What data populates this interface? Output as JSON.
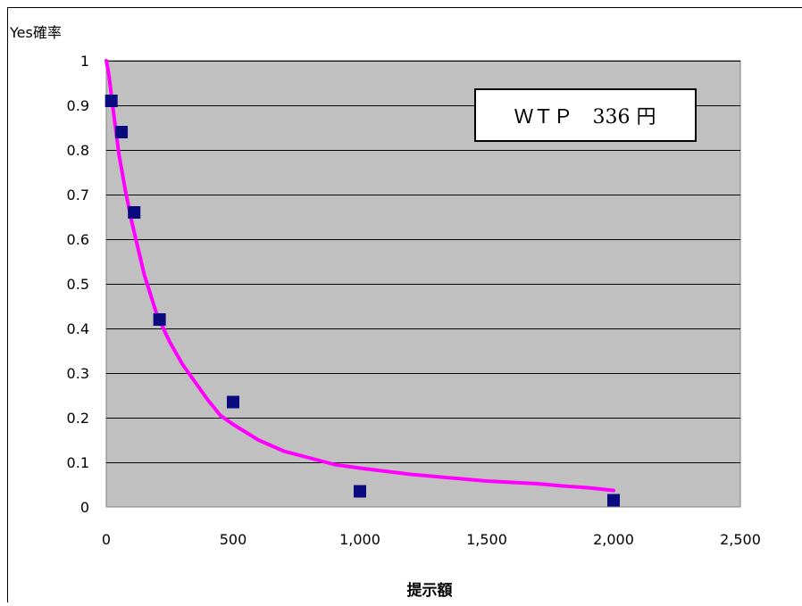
{
  "chart_data": {
    "type": "scatter",
    "title": "",
    "xlabel": "提示額",
    "ylabel": "Yes確率",
    "xlim": [
      0,
      2500
    ],
    "ylim": [
      0,
      1
    ],
    "x_ticks": [
      0,
      500,
      1000,
      1500,
      2000,
      2500
    ],
    "x_tick_labels": [
      "0",
      "500",
      "1,000",
      "1,500",
      "2,000",
      "2,500"
    ],
    "y_ticks": [
      0,
      0.1,
      0.2,
      0.3,
      0.4,
      0.5,
      0.6,
      0.7,
      0.8,
      0.9,
      1
    ],
    "y_tick_labels": [
      "0",
      "0.1",
      "0.2",
      "0.3",
      "0.4",
      "0.5",
      "0.6",
      "0.7",
      "0.8",
      "0.9",
      "1"
    ],
    "grid": "horizontal",
    "legend": "none",
    "annotation": "ＷＴＰ　336 円",
    "series": [
      {
        "type": "scatter",
        "color": "#0a0a80",
        "marker": "square",
        "points": [
          {
            "x": 20,
            "y": 0.91
          },
          {
            "x": 60,
            "y": 0.84
          },
          {
            "x": 110,
            "y": 0.66
          },
          {
            "x": 210,
            "y": 0.42
          },
          {
            "x": 500,
            "y": 0.235
          },
          {
            "x": 1000,
            "y": 0.035
          },
          {
            "x": 2000,
            "y": 0.015
          }
        ]
      },
      {
        "type": "line",
        "color": "#ff00ff",
        "points": [
          {
            "x": 0,
            "y": 1.0
          },
          {
            "x": 10,
            "y": 0.97
          },
          {
            "x": 25,
            "y": 0.9
          },
          {
            "x": 50,
            "y": 0.79
          },
          {
            "x": 75,
            "y": 0.71
          },
          {
            "x": 100,
            "y": 0.64
          },
          {
            "x": 125,
            "y": 0.58
          },
          {
            "x": 150,
            "y": 0.52
          },
          {
            "x": 200,
            "y": 0.43
          },
          {
            "x": 250,
            "y": 0.37
          },
          {
            "x": 300,
            "y": 0.32
          },
          {
            "x": 350,
            "y": 0.28
          },
          {
            "x": 400,
            "y": 0.24
          },
          {
            "x": 450,
            "y": 0.205
          },
          {
            "x": 500,
            "y": 0.185
          },
          {
            "x": 600,
            "y": 0.15
          },
          {
            "x": 700,
            "y": 0.125
          },
          {
            "x": 800,
            "y": 0.11
          },
          {
            "x": 900,
            "y": 0.095
          },
          {
            "x": 1000,
            "y": 0.087
          },
          {
            "x": 1100,
            "y": 0.08
          },
          {
            "x": 1200,
            "y": 0.073
          },
          {
            "x": 1300,
            "y": 0.068
          },
          {
            "x": 1400,
            "y": 0.063
          },
          {
            "x": 1500,
            "y": 0.058
          },
          {
            "x": 1600,
            "y": 0.055
          },
          {
            "x": 1700,
            "y": 0.052
          },
          {
            "x": 1800,
            "y": 0.047
          },
          {
            "x": 1900,
            "y": 0.043
          },
          {
            "x": 2000,
            "y": 0.037
          }
        ]
      }
    ]
  }
}
